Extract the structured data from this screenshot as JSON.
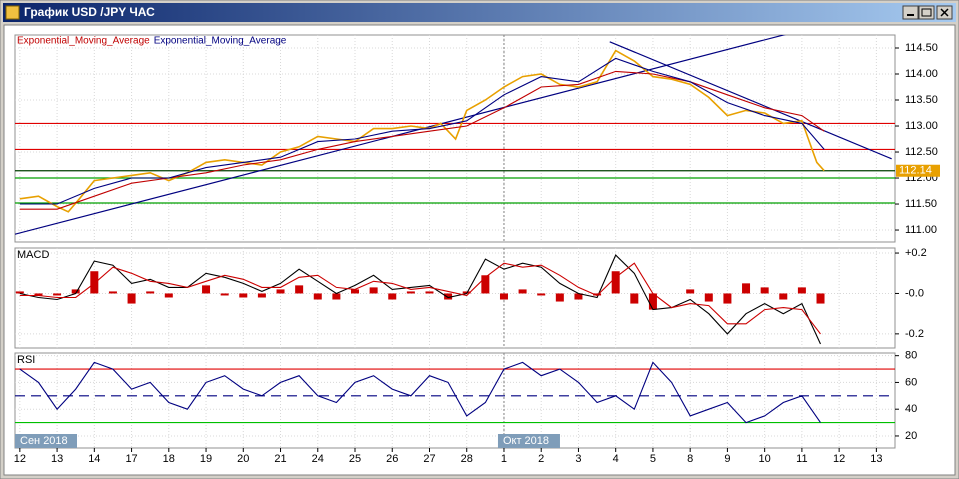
{
  "window": {
    "title": "График USD /JPY ЧАС"
  },
  "time_axis": {
    "xlim": [
      -0.13,
      23.5
    ],
    "xticks": [
      {
        "value": 0,
        "label": "12"
      },
      {
        "value": 1,
        "label": "13"
      },
      {
        "value": 2,
        "label": "14"
      },
      {
        "value": 3,
        "label": "17"
      },
      {
        "value": 4,
        "label": "18"
      },
      {
        "value": 5,
        "label": "19"
      },
      {
        "value": 6,
        "label": "20"
      },
      {
        "value": 7,
        "label": "21"
      },
      {
        "value": 8,
        "label": "24"
      },
      {
        "value": 9,
        "label": "25"
      },
      {
        "value": 10,
        "label": "26"
      },
      {
        "value": 11,
        "label": "27"
      },
      {
        "value": 12,
        "label": "28"
      },
      {
        "value": 13,
        "label": "1"
      },
      {
        "value": 14,
        "label": "2"
      },
      {
        "value": 15,
        "label": "3"
      },
      {
        "value": 16,
        "label": "4"
      },
      {
        "value": 17,
        "label": "5"
      },
      {
        "value": 18,
        "label": "8"
      },
      {
        "value": 19,
        "label": "9"
      },
      {
        "value": 20,
        "label": "10"
      },
      {
        "value": 21,
        "label": "11"
      },
      {
        "value": 22,
        "label": "12"
      },
      {
        "value": 23,
        "label": "13"
      }
    ],
    "months": [
      {
        "value": 0,
        "label": "Сен 2018"
      },
      {
        "value": 13,
        "label": "Окт 2018"
      }
    ]
  },
  "chart_data": [
    {
      "type": "line",
      "grid": true,
      "ylim": [
        110.77,
        114.75
      ],
      "yticks": [
        {
          "value": 111,
          "label": "111.00"
        },
        {
          "value": 111.5,
          "label": "111.50"
        },
        {
          "value": 112,
          "label": "112.00"
        },
        {
          "value": 112.5,
          "label": "112.50"
        },
        {
          "value": 113,
          "label": "113.00"
        },
        {
          "value": 113.5,
          "label": "113.50"
        },
        {
          "value": 114,
          "label": "114.00"
        },
        {
          "value": 114.5,
          "label": "114.50"
        }
      ],
      "series": [
        {
          "color": "#e8a000",
          "x": [
            0,
            0.5,
            1,
            1.3,
            1.6,
            2,
            2.5,
            3,
            3.5,
            4,
            4.5,
            5,
            5.5,
            6,
            6.5,
            7,
            7.5,
            8,
            8.5,
            9,
            9.5,
            10,
            10.5,
            11,
            11.3,
            11.7,
            12,
            12.5,
            13,
            13.5,
            14,
            14.5,
            15,
            15.5,
            16,
            16.5,
            17,
            17.5,
            18,
            18.5,
            19,
            19.5,
            20,
            20.5,
            21,
            21.2,
            21.4,
            21.6
          ],
          "values": [
            111.6,
            111.65,
            111.45,
            111.35,
            111.6,
            111.95,
            112.0,
            112.05,
            112.1,
            111.95,
            112.1,
            112.3,
            112.35,
            112.3,
            112.25,
            112.5,
            112.6,
            112.8,
            112.75,
            112.7,
            112.95,
            112.95,
            113.0,
            112.95,
            113.05,
            112.75,
            113.3,
            113.5,
            113.75,
            113.95,
            114.0,
            113.8,
            113.75,
            113.85,
            114.45,
            114.25,
            113.95,
            113.9,
            113.8,
            113.55,
            113.2,
            113.3,
            113.25,
            113.05,
            113.1,
            112.7,
            112.3,
            112.14
          ]
        },
        {
          "name": "Exponential_Moving_Average",
          "color": "#c00000",
          "x": [
            0,
            1,
            2,
            3,
            4,
            5,
            6,
            7,
            8,
            9,
            10,
            11,
            12,
            13,
            14,
            15,
            16,
            17,
            18,
            19,
            20,
            21,
            21.6
          ],
          "values": [
            111.4,
            111.4,
            111.65,
            111.9,
            112.0,
            112.1,
            112.25,
            112.35,
            112.55,
            112.7,
            112.8,
            112.9,
            113.0,
            113.35,
            113.75,
            113.8,
            114.05,
            114.0,
            113.85,
            113.6,
            113.35,
            113.2,
            112.9
          ]
        },
        {
          "name": "Exponential_Moving_Average",
          "color": "#000080",
          "x": [
            0,
            1,
            2,
            3,
            4,
            5,
            6,
            7,
            8,
            9,
            10,
            11,
            12,
            13,
            14,
            15,
            16,
            17,
            18,
            19,
            20,
            21,
            21.6
          ],
          "values": [
            111.5,
            111.5,
            111.8,
            112.0,
            112.0,
            112.2,
            112.3,
            112.4,
            112.7,
            112.75,
            112.9,
            112.95,
            113.1,
            113.6,
            113.95,
            113.85,
            114.3,
            114.05,
            113.85,
            113.45,
            113.2,
            113.05,
            112.55
          ]
        }
      ],
      "levels": [
        {
          "value": 113.05,
          "color": "#e00000"
        },
        {
          "value": 112.55,
          "color": "#e00000"
        },
        {
          "value": 112.14,
          "color": "#004000"
        },
        {
          "value": 112.0,
          "color": "#00a000"
        },
        {
          "value": 111.52,
          "color": "#00a000"
        }
      ],
      "trendlines": [
        {
          "x": [
            -0.13,
            20.72
          ],
          "values": [
            110.92,
            114.79
          ],
          "color": "#000080"
        },
        {
          "x": [
            15.84,
            23.41
          ],
          "values": [
            114.62,
            112.37
          ],
          "color": "#000080"
        }
      ],
      "last_value": 112.14,
      "last_value_color": "#e8a000"
    },
    {
      "type": "line",
      "title": "MACD",
      "grid": true,
      "ylim": [
        -0.27,
        0.225
      ],
      "yticks": [
        {
          "value": 0.2,
          "label": "+0.2"
        },
        {
          "value": 0,
          "label": "-0.0"
        },
        {
          "value": -0.2,
          "label": "-0.2"
        }
      ],
      "histogram": {
        "color": "#cc0000",
        "x": [
          0,
          0.5,
          1,
          1.5,
          2,
          2.5,
          3,
          3.5,
          4,
          4.5,
          5,
          5.5,
          6,
          6.5,
          7,
          7.5,
          8,
          8.5,
          9,
          9.5,
          10,
          10.5,
          11,
          11.5,
          12,
          12.5,
          13,
          13.5,
          14,
          14.5,
          15,
          15.5,
          16,
          16.5,
          17,
          17.5,
          18,
          18.5,
          19,
          19.5,
          20,
          20.5,
          21,
          21.5
        ],
        "values": [
          0.01,
          -0.01,
          -0.01,
          0.02,
          0.11,
          0.01,
          -0.05,
          0.01,
          -0.02,
          0,
          0.04,
          -0.01,
          -0.02,
          -0.02,
          0.02,
          0.04,
          -0.03,
          -0.03,
          0.02,
          0.03,
          -0.03,
          0.01,
          0.01,
          -0.03,
          0.01,
          0.09,
          -0.03,
          0.02,
          -0.01,
          -0.04,
          -0.03,
          -0.01,
          0.11,
          -0.05,
          -0.08,
          0,
          0.02,
          -0.04,
          -0.05,
          0.05,
          0.03,
          -0.03,
          0.03,
          -0.05
        ]
      },
      "series": [
        {
          "color": "#000000",
          "x": [
            0,
            0.5,
            1,
            1.5,
            2,
            2.5,
            3,
            3.5,
            4,
            4.5,
            5,
            5.5,
            6,
            6.5,
            7,
            7.5,
            8,
            8.5,
            9,
            9.5,
            10,
            10.5,
            11,
            11.5,
            12,
            12.5,
            13,
            13.5,
            14,
            14.5,
            15,
            15.5,
            16,
            16.5,
            17,
            17.5,
            18,
            18.5,
            19,
            19.5,
            20,
            20.5,
            21,
            21.5
          ],
          "values": [
            0,
            -0.02,
            -0.03,
            0.0,
            0.16,
            0.14,
            0.05,
            0.07,
            0.03,
            0.03,
            0.1,
            0.08,
            0.05,
            0.01,
            0.05,
            0.12,
            0.06,
            0.0,
            0.04,
            0.09,
            0.02,
            0.03,
            0.04,
            -0.02,
            0.0,
            0.17,
            0.12,
            0.15,
            0.13,
            0.05,
            0.0,
            -0.02,
            0.19,
            0.1,
            -0.08,
            -0.07,
            -0.03,
            -0.1,
            -0.2,
            -0.1,
            -0.05,
            -0.1,
            -0.05,
            -0.25
          ]
        },
        {
          "color": "#cc0000",
          "x": [
            0,
            0.5,
            1,
            1.5,
            2,
            2.5,
            3,
            3.5,
            4,
            4.5,
            5,
            5.5,
            6,
            6.5,
            7,
            7.5,
            8,
            8.5,
            9,
            9.5,
            10,
            10.5,
            11,
            11.5,
            12,
            12.5,
            13,
            13.5,
            14,
            14.5,
            15,
            15.5,
            16,
            16.5,
            17,
            17.5,
            18,
            18.5,
            19,
            19.5,
            20,
            20.5,
            21,
            21.5
          ],
          "values": [
            -0.01,
            -0.01,
            -0.02,
            -0.02,
            0.05,
            0.13,
            0.1,
            0.06,
            0.05,
            0.03,
            0.06,
            0.09,
            0.07,
            0.03,
            0.03,
            0.08,
            0.09,
            0.03,
            0.02,
            0.06,
            0.05,
            0.02,
            0.03,
            0.01,
            -0.01,
            0.08,
            0.15,
            0.13,
            0.14,
            0.09,
            0.03,
            -0.01,
            0.08,
            0.15,
            0.0,
            -0.07,
            -0.05,
            -0.06,
            -0.15,
            -0.15,
            -0.08,
            -0.07,
            -0.08,
            -0.2
          ]
        }
      ]
    },
    {
      "type": "line",
      "title": "RSI",
      "grid": true,
      "ylim": [
        11,
        82
      ],
      "yticks": [
        20,
        40,
        60,
        80
      ],
      "levels": [
        {
          "value": 70,
          "color": "#e00000"
        },
        {
          "value": 50,
          "color": "#000080",
          "style": "dashed"
        },
        {
          "value": 30,
          "color": "#00c000"
        }
      ],
      "series": [
        {
          "color": "#000080",
          "x": [
            0,
            0.5,
            1,
            1.5,
            2,
            2.5,
            3,
            3.5,
            4,
            4.5,
            5,
            5.5,
            6,
            6.5,
            7,
            7.5,
            8,
            8.5,
            9,
            9.5,
            10,
            10.5,
            11,
            11.5,
            12,
            12.5,
            13,
            13.5,
            14,
            14.5,
            15,
            15.5,
            16,
            16.5,
            17,
            17.5,
            18,
            18.5,
            19,
            19.5,
            20,
            20.5,
            21,
            21.5
          ],
          "values": [
            70,
            60,
            40,
            55,
            75,
            70,
            55,
            60,
            45,
            40,
            60,
            65,
            55,
            50,
            60,
            65,
            50,
            45,
            60,
            65,
            55,
            50,
            65,
            60,
            35,
            45,
            70,
            75,
            65,
            70,
            60,
            45,
            50,
            40,
            75,
            60,
            35,
            40,
            45,
            30,
            35,
            45,
            50,
            30
          ]
        }
      ]
    }
  ]
}
